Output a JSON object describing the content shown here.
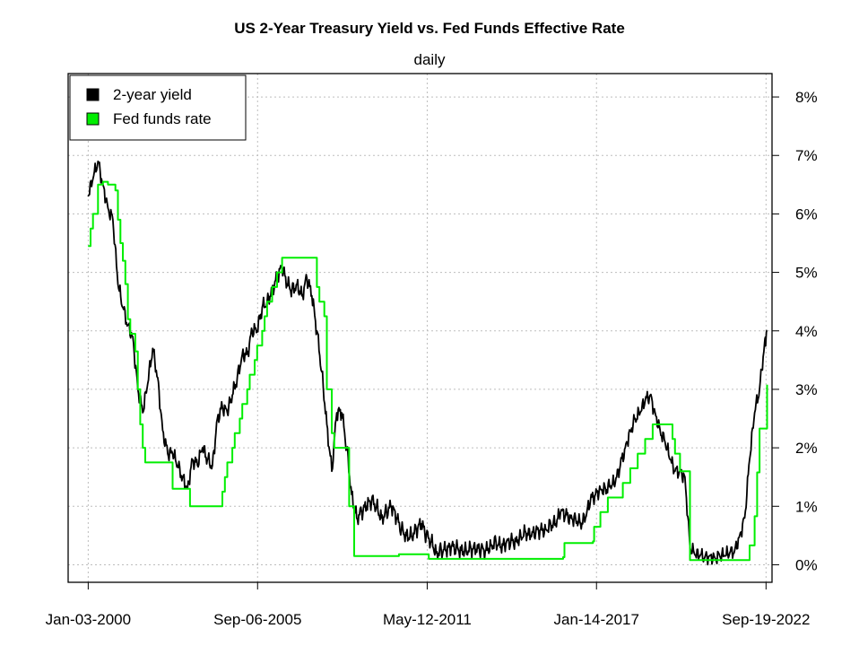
{
  "chart_data": {
    "type": "line",
    "title": "US 2-Year Treasury Yield vs. Fed Funds Effective Rate",
    "subtitle": "daily",
    "xlabel": "",
    "ylabel": "",
    "x_tick_labels": [
      "Jan-03-2000",
      "Sep-06-2005",
      "May-12-2011",
      "Jan-14-2017",
      "Sep-19-2022"
    ],
    "y_tick_labels": [
      "0%",
      "1%",
      "2%",
      "3%",
      "4%",
      "5%",
      "6%",
      "7%",
      "8%"
    ],
    "xlim": [
      "1999-05",
      "2022-12"
    ],
    "ylim": [
      -0.3,
      8.4
    ],
    "y_axis_side": "right",
    "grid": true,
    "legend_position": "top-left",
    "series": [
      {
        "name": "2-year yield",
        "color": "#000000",
        "points": [
          [
            "2000-01",
            6.3
          ],
          [
            "2000-03",
            6.6
          ],
          [
            "2000-05",
            6.9
          ],
          [
            "2000-07",
            6.5
          ],
          [
            "2000-09",
            6.1
          ],
          [
            "2000-11",
            5.9
          ],
          [
            "2001-01",
            4.8
          ],
          [
            "2001-03",
            4.4
          ],
          [
            "2001-05",
            4.1
          ],
          [
            "2001-07",
            3.9
          ],
          [
            "2001-09",
            3.0
          ],
          [
            "2001-11",
            2.6
          ],
          [
            "2002-01",
            3.1
          ],
          [
            "2002-03",
            3.7
          ],
          [
            "2002-05",
            3.2
          ],
          [
            "2002-07",
            2.3
          ],
          [
            "2002-09",
            1.9
          ],
          [
            "2002-11",
            1.9
          ],
          [
            "2003-01",
            1.7
          ],
          [
            "2003-03",
            1.5
          ],
          [
            "2003-05",
            1.3
          ],
          [
            "2003-07",
            1.8
          ],
          [
            "2003-09",
            1.7
          ],
          [
            "2003-11",
            2.0
          ],
          [
            "2004-01",
            1.8
          ],
          [
            "2004-03",
            1.7
          ],
          [
            "2004-05",
            2.5
          ],
          [
            "2004-07",
            2.7
          ],
          [
            "2004-09",
            2.6
          ],
          [
            "2004-11",
            2.9
          ],
          [
            "2005-01",
            3.2
          ],
          [
            "2005-03",
            3.6
          ],
          [
            "2005-05",
            3.6
          ],
          [
            "2005-07",
            4.0
          ],
          [
            "2005-09",
            4.0
          ],
          [
            "2005-11",
            4.4
          ],
          [
            "2006-01",
            4.5
          ],
          [
            "2006-03",
            4.7
          ],
          [
            "2006-05",
            4.9
          ],
          [
            "2006-07",
            5.1
          ],
          [
            "2006-09",
            4.8
          ],
          [
            "2006-11",
            4.7
          ],
          [
            "2007-01",
            4.8
          ],
          [
            "2007-03",
            4.6
          ],
          [
            "2007-05",
            4.9
          ],
          [
            "2007-07",
            4.6
          ],
          [
            "2007-09",
            4.0
          ],
          [
            "2007-11",
            3.3
          ],
          [
            "2008-01",
            2.4
          ],
          [
            "2008-03",
            1.6
          ],
          [
            "2008-05",
            2.6
          ],
          [
            "2008-07",
            2.6
          ],
          [
            "2008-09",
            2.0
          ],
          [
            "2008-11",
            1.2
          ],
          [
            "2009-01",
            0.8
          ],
          [
            "2009-03",
            0.9
          ],
          [
            "2009-05",
            1.0
          ],
          [
            "2009-07",
            1.1
          ],
          [
            "2009-09",
            1.0
          ],
          [
            "2009-11",
            0.8
          ],
          [
            "2010-01",
            0.9
          ],
          [
            "2010-03",
            1.0
          ],
          [
            "2010-05",
            0.8
          ],
          [
            "2010-07",
            0.6
          ],
          [
            "2010-09",
            0.5
          ],
          [
            "2010-11",
            0.5
          ],
          [
            "2011-01",
            0.6
          ],
          [
            "2011-03",
            0.7
          ],
          [
            "2011-05",
            0.5
          ],
          [
            "2011-07",
            0.4
          ],
          [
            "2011-09",
            0.2
          ],
          [
            "2011-11",
            0.25
          ],
          [
            "2012-01",
            0.25
          ],
          [
            "2012-03",
            0.3
          ],
          [
            "2012-05",
            0.28
          ],
          [
            "2012-07",
            0.25
          ],
          [
            "2012-09",
            0.25
          ],
          [
            "2012-11",
            0.27
          ],
          [
            "2013-01",
            0.26
          ],
          [
            "2013-03",
            0.25
          ],
          [
            "2013-05",
            0.25
          ],
          [
            "2013-07",
            0.33
          ],
          [
            "2013-09",
            0.4
          ],
          [
            "2013-11",
            0.3
          ],
          [
            "2014-01",
            0.35
          ],
          [
            "2014-03",
            0.4
          ],
          [
            "2014-05",
            0.4
          ],
          [
            "2014-07",
            0.5
          ],
          [
            "2014-09",
            0.55
          ],
          [
            "2014-11",
            0.5
          ],
          [
            "2015-01",
            0.55
          ],
          [
            "2015-03",
            0.6
          ],
          [
            "2015-05",
            0.6
          ],
          [
            "2015-07",
            0.7
          ],
          [
            "2015-09",
            0.7
          ],
          [
            "2015-11",
            0.9
          ],
          [
            "2016-01",
            0.85
          ],
          [
            "2016-03",
            0.8
          ],
          [
            "2016-05",
            0.8
          ],
          [
            "2016-07",
            0.7
          ],
          [
            "2016-09",
            0.8
          ],
          [
            "2016-11",
            1.1
          ],
          [
            "2017-01",
            1.2
          ],
          [
            "2017-03",
            1.3
          ],
          [
            "2017-05",
            1.3
          ],
          [
            "2017-07",
            1.35
          ],
          [
            "2017-09",
            1.4
          ],
          [
            "2017-11",
            1.7
          ],
          [
            "2018-01",
            2.0
          ],
          [
            "2018-03",
            2.3
          ],
          [
            "2018-05",
            2.5
          ],
          [
            "2018-07",
            2.6
          ],
          [
            "2018-09",
            2.8
          ],
          [
            "2018-11",
            2.9
          ],
          [
            "2019-01",
            2.6
          ],
          [
            "2019-03",
            2.3
          ],
          [
            "2019-05",
            2.1
          ],
          [
            "2019-07",
            1.8
          ],
          [
            "2019-09",
            1.6
          ],
          [
            "2019-11",
            1.6
          ],
          [
            "2020-01",
            1.5
          ],
          [
            "2020-03",
            0.3
          ],
          [
            "2020-05",
            0.17
          ],
          [
            "2020-07",
            0.15
          ],
          [
            "2020-09",
            0.13
          ],
          [
            "2020-11",
            0.16
          ],
          [
            "2021-01",
            0.12
          ],
          [
            "2021-03",
            0.15
          ],
          [
            "2021-05",
            0.15
          ],
          [
            "2021-07",
            0.2
          ],
          [
            "2021-09",
            0.25
          ],
          [
            "2021-11",
            0.5
          ],
          [
            "2022-01",
            0.8
          ],
          [
            "2022-03",
            1.8
          ],
          [
            "2022-05",
            2.6
          ],
          [
            "2022-07",
            3.0
          ],
          [
            "2022-09",
            3.8
          ],
          [
            "2022-10",
            4.0
          ]
        ]
      },
      {
        "name": "Fed funds rate",
        "color": "#00ee00",
        "points": [
          [
            "2000-01",
            5.45
          ],
          [
            "2000-02",
            5.75
          ],
          [
            "2000-03",
            6.0
          ],
          [
            "2000-05",
            6.5
          ],
          [
            "2000-07",
            6.55
          ],
          [
            "2000-09",
            6.5
          ],
          [
            "2000-12",
            6.4
          ],
          [
            "2001-01",
            5.9
          ],
          [
            "2001-02",
            5.5
          ],
          [
            "2001-03",
            5.2
          ],
          [
            "2001-04",
            4.8
          ],
          [
            "2001-05",
            4.2
          ],
          [
            "2001-06",
            3.95
          ],
          [
            "2001-08",
            3.65
          ],
          [
            "2001-09",
            3.0
          ],
          [
            "2001-10",
            2.4
          ],
          [
            "2001-11",
            2.0
          ],
          [
            "2001-12",
            1.75
          ],
          [
            "2002-06",
            1.75
          ],
          [
            "2002-11",
            1.3
          ],
          [
            "2003-06",
            1.0
          ],
          [
            "2004-06",
            1.0
          ],
          [
            "2004-07",
            1.25
          ],
          [
            "2004-08",
            1.5
          ],
          [
            "2004-09",
            1.75
          ],
          [
            "2004-11",
            2.0
          ],
          [
            "2004-12",
            2.25
          ],
          [
            "2005-02",
            2.5
          ],
          [
            "2005-03",
            2.75
          ],
          [
            "2005-05",
            3.0
          ],
          [
            "2005-06",
            3.25
          ],
          [
            "2005-08",
            3.5
          ],
          [
            "2005-09",
            3.75
          ],
          [
            "2005-11",
            4.0
          ],
          [
            "2005-12",
            4.25
          ],
          [
            "2006-01",
            4.5
          ],
          [
            "2006-03",
            4.75
          ],
          [
            "2006-05",
            5.0
          ],
          [
            "2006-07",
            5.25
          ],
          [
            "2007-08",
            5.25
          ],
          [
            "2007-09",
            4.75
          ],
          [
            "2007-10",
            4.5
          ],
          [
            "2007-12",
            4.25
          ],
          [
            "2008-01",
            3.0
          ],
          [
            "2008-03",
            2.25
          ],
          [
            "2008-04",
            2.0
          ],
          [
            "2008-10",
            1.0
          ],
          [
            "2008-12",
            0.15
          ],
          [
            "2010-06",
            0.18
          ],
          [
            "2011-06",
            0.1
          ],
          [
            "2013-06",
            0.1
          ],
          [
            "2015-12",
            0.13
          ],
          [
            "2015-12-17",
            0.37
          ],
          [
            "2016-12",
            0.4
          ],
          [
            "2016-12-15",
            0.65
          ],
          [
            "2017-03",
            0.9
          ],
          [
            "2017-06",
            1.15
          ],
          [
            "2017-12",
            1.4
          ],
          [
            "2018-03",
            1.65
          ],
          [
            "2018-06",
            1.9
          ],
          [
            "2018-09",
            2.15
          ],
          [
            "2018-12",
            2.4
          ],
          [
            "2019-07",
            2.4
          ],
          [
            "2019-08",
            2.15
          ],
          [
            "2019-09",
            1.9
          ],
          [
            "2019-11",
            1.6
          ],
          [
            "2020-02",
            1.6
          ],
          [
            "2020-03",
            0.08
          ],
          [
            "2022-02",
            0.08
          ],
          [
            "2022-03",
            0.33
          ],
          [
            "2022-05",
            0.83
          ],
          [
            "2022-06",
            1.58
          ],
          [
            "2022-07",
            2.33
          ],
          [
            "2022-09",
            2.33
          ],
          [
            "2022-10",
            3.08
          ]
        ]
      }
    ]
  }
}
